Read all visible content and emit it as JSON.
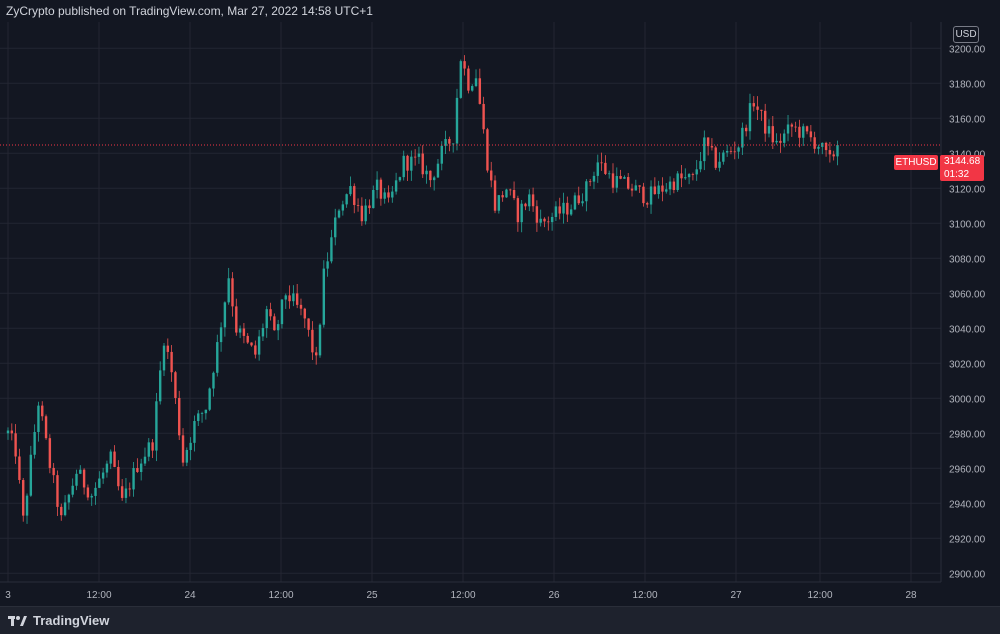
{
  "header": {
    "published": "ZyCrypto published on TradingView.com, Mar 27, 2022 14:58 UTC+1"
  },
  "footer": {
    "logo_text": "TradingView",
    "logo_icon": "tradingview-logo-icon"
  },
  "currency_badge": "USD",
  "symbol": "ETHUSD",
  "last_price": "3144.68",
  "countdown": "01:32",
  "colors": {
    "background": "#131722",
    "grid": "#232632",
    "up": "#26a69a",
    "down": "#ef5350",
    "price_line": "#f23645"
  },
  "chart_data": {
    "type": "candlestick",
    "title": "",
    "ylim": [
      2895,
      3215
    ],
    "y_ticks": [
      "2900.00",
      "2920.00",
      "2940.00",
      "2960.00",
      "2980.00",
      "3000.00",
      "3020.00",
      "3040.00",
      "3060.00",
      "3080.00",
      "3100.00",
      "3120.00",
      "3140.00",
      "3160.00",
      "3180.00",
      "3200.00"
    ],
    "x_ticks": [
      "3",
      "12:00",
      "24",
      "12:00",
      "25",
      "12:00",
      "26",
      "12:00",
      "27",
      "12:00",
      "28"
    ],
    "last_price": 3144.68,
    "price_path": [
      [
        0,
        2980
      ],
      [
        2,
        2970
      ],
      [
        4,
        2930
      ],
      [
        8,
        2998
      ],
      [
        11,
        2962
      ],
      [
        14,
        2930
      ],
      [
        18,
        2958
      ],
      [
        22,
        2945
      ],
      [
        27,
        2965
      ],
      [
        30,
        2940
      ],
      [
        34,
        2962
      ],
      [
        38,
        2975
      ],
      [
        41,
        3035
      ],
      [
        43,
        3015
      ],
      [
        46,
        2965
      ],
      [
        49,
        2985
      ],
      [
        52,
        2995
      ],
      [
        55,
        3030
      ],
      [
        58,
        3070
      ],
      [
        60,
        3040
      ],
      [
        63,
        3030
      ],
      [
        65,
        3025
      ],
      [
        68,
        3050
      ],
      [
        70,
        3035
      ],
      [
        73,
        3060
      ],
      [
        75,
        3055
      ],
      [
        78,
        3045
      ],
      [
        81,
        3020
      ],
      [
        83,
        3070
      ],
      [
        87,
        3110
      ],
      [
        90,
        3120
      ],
      [
        93,
        3105
      ],
      [
        97,
        3120
      ],
      [
        100,
        3110
      ],
      [
        104,
        3135
      ],
      [
        108,
        3135
      ],
      [
        111,
        3125
      ],
      [
        114,
        3140
      ],
      [
        117,
        3150
      ],
      [
        119,
        3195
      ],
      [
        121,
        3180
      ],
      [
        123,
        3185
      ],
      [
        126,
        3135
      ],
      [
        128,
        3110
      ],
      [
        131,
        3120
      ],
      [
        134,
        3105
      ],
      [
        137,
        3115
      ],
      [
        140,
        3100
      ],
      [
        144,
        3105
      ],
      [
        148,
        3110
      ],
      [
        152,
        3120
      ],
      [
        155,
        3135
      ],
      [
        159,
        3125
      ],
      [
        164,
        3120
      ],
      [
        168,
        3115
      ],
      [
        172,
        3120
      ],
      [
        176,
        3125
      ],
      [
        180,
        3125
      ],
      [
        183,
        3145
      ],
      [
        186,
        3135
      ],
      [
        189,
        3140
      ],
      [
        192,
        3145
      ],
      [
        196,
        3170
      ],
      [
        199,
        3155
      ],
      [
        202,
        3145
      ],
      [
        206,
        3155
      ],
      [
        210,
        3150
      ],
      [
        213,
        3145
      ],
      [
        216,
        3135
      ],
      [
        217,
        3140
      ],
      [
        218,
        3144.68
      ]
    ]
  }
}
